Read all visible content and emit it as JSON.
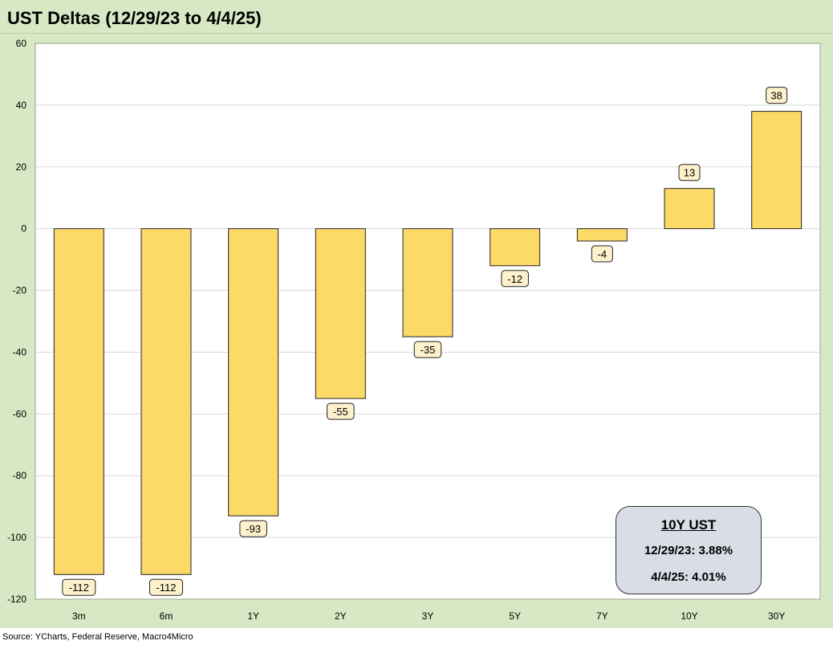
{
  "title": "UST Deltas (12/29/23 to 4/4/25)",
  "source": "Source: YCharts, Federal Reserve, Macro4Micro",
  "info_box": {
    "title": "10Y UST",
    "line1": "12/29/23: 3.88%",
    "line2": "4/4/25: 4.01%"
  },
  "colors": {
    "background": "#d7e8c4",
    "plot_background": "#ffffff",
    "bar_fill": "#fdd967",
    "bar_stroke": "#222222",
    "label_fill": "#fdf1cc",
    "grid": "#d9d9d9",
    "info_box_fill": "#d9dde5"
  },
  "chart_data": {
    "type": "bar",
    "categories": [
      "3m",
      "6m",
      "1Y",
      "2Y",
      "3Y",
      "5Y",
      "7Y",
      "10Y",
      "30Y"
    ],
    "values": [
      -112,
      -112,
      -93,
      -55,
      -35,
      -12,
      -4,
      13,
      38
    ],
    "data_labels": [
      "-112",
      "-112",
      "-93",
      "-55",
      "-35",
      "-12",
      "-4",
      "13",
      "38"
    ],
    "title": "UST Deltas (12/29/23 to 4/4/25)",
    "xlabel": "",
    "ylabel": "",
    "ylim": [
      -120,
      60
    ],
    "yticks": [
      60,
      40,
      20,
      0,
      -20,
      -40,
      -60,
      -80,
      -100,
      -120
    ],
    "grid": true,
    "legend": "none"
  }
}
